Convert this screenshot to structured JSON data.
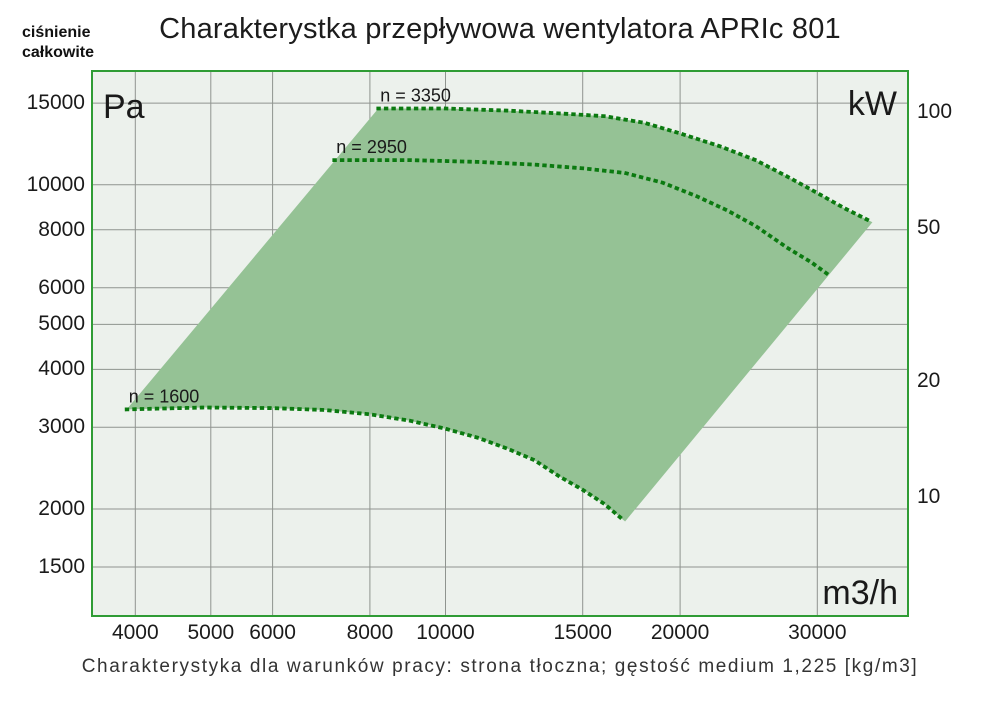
{
  "header": {
    "corner_label_line1": "ciśnienie",
    "corner_label_line2": "całkowite",
    "title": "Charakterystka przepływowa wentylatora APRIc 801"
  },
  "footer": {
    "caption": "Charakterystyka dla warunków pracy: strona tłoczna; gęstość medium 1,225 [kg/m3]"
  },
  "chart_data": {
    "type": "area",
    "title": "Charakterystka przepływowa wentylatora APRIc 801",
    "description": "Fan operating envelope on log-log axes; shaded region bounded above by n = 3350 curve, below by n = 1600 curve, with n = 2950 curve inside",
    "x_axis": {
      "label": "m3/h",
      "scale": "log",
      "ticks": [
        4000,
        5000,
        6000,
        8000,
        10000,
        15000,
        20000,
        30000
      ],
      "range": [
        3530,
        39100
      ],
      "grid": true
    },
    "y_axis_left": {
      "label": "Pa",
      "scale": "log",
      "ticks": [
        15000,
        10000,
        8000,
        6000,
        5000,
        4000,
        3000,
        2000,
        1500
      ],
      "range": [
        1182,
        17500
      ],
      "grid": true
    },
    "y_axis_right": {
      "label": "kW",
      "scale": "log",
      "ticks": [
        100,
        50,
        20,
        10
      ],
      "range": [
        4.94,
        127.1
      ],
      "grid": false
    },
    "series": [
      {
        "name": "n = 3350",
        "style": "dotted",
        "points": [
          [
            8200,
            14600
          ],
          [
            10000,
            14600
          ],
          [
            12000,
            14450
          ],
          [
            14000,
            14250
          ],
          [
            16000,
            14050
          ],
          [
            18000,
            13600
          ],
          [
            20000,
            12900
          ],
          [
            22500,
            12100
          ],
          [
            25000,
            11300
          ],
          [
            27500,
            10400
          ],
          [
            30000,
            9600
          ],
          [
            32500,
            8900
          ],
          [
            35300,
            8300
          ]
        ]
      },
      {
        "name": "n = 2950",
        "style": "dotted",
        "points": [
          [
            7200,
            11300
          ],
          [
            9000,
            11300
          ],
          [
            11000,
            11200
          ],
          [
            13000,
            11050
          ],
          [
            15000,
            10850
          ],
          [
            17000,
            10600
          ],
          [
            19000,
            10100
          ],
          [
            21000,
            9450
          ],
          [
            23000,
            8800
          ],
          [
            25000,
            8150
          ],
          [
            27500,
            7300
          ],
          [
            29500,
            6800
          ],
          [
            31000,
            6400
          ]
        ]
      },
      {
        "name": "n = 1600",
        "style": "dotted",
        "points": [
          [
            3900,
            3280
          ],
          [
            4900,
            3310
          ],
          [
            6000,
            3300
          ],
          [
            7000,
            3270
          ],
          [
            8000,
            3200
          ],
          [
            9000,
            3100
          ],
          [
            10000,
            2980
          ],
          [
            11000,
            2850
          ],
          [
            12000,
            2700
          ],
          [
            13000,
            2550
          ],
          [
            14000,
            2350
          ],
          [
            15000,
            2200
          ],
          [
            16000,
            2050
          ],
          [
            17000,
            1880
          ]
        ]
      }
    ],
    "region": {
      "note": "shaded envelope = upper curve (n=3350) joined to lower curve (n=1600) by straight edges"
    },
    "colors": {
      "region_fill": "#95c295",
      "curve": "#0b7a10",
      "plot_border": "#2f9c35",
      "plot_background": "#ecf1ec",
      "gridline": "#8f948f",
      "text": "#1a1a1a"
    }
  }
}
